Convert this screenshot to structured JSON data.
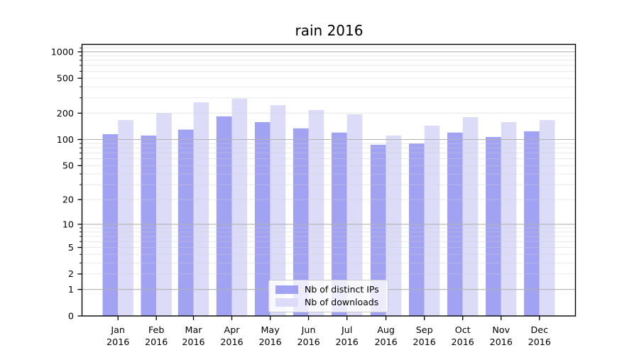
{
  "title": "rain 2016",
  "legend": {
    "items": [
      {
        "label": "Nb of distinct IPs",
        "series": "distinct_ips"
      },
      {
        "label": "Nb of downloads",
        "series": "downloads"
      }
    ]
  },
  "colors": {
    "distinct_ips": "#a2a2f2",
    "downloads": "#dcdcf9",
    "grid_major": "#b2b2b2",
    "grid_minor": "#cdcdcd",
    "spine": "#000000",
    "text": "#000000",
    "legend_border": "#cccccc"
  },
  "axes": {
    "y_tick_labels": [
      "0",
      "1",
      "2",
      "5",
      "10",
      "20",
      "50",
      "100",
      "200",
      "500",
      "1000"
    ],
    "x_months": [
      "Jan",
      "Feb",
      "Mar",
      "Apr",
      "May",
      "Jun",
      "Jul",
      "Aug",
      "Sep",
      "Oct",
      "Nov",
      "Dec"
    ],
    "x_year": "2016"
  },
  "chart_data": {
    "type": "bar",
    "title": "rain 2016",
    "categories": [
      "Jan 2016",
      "Feb 2016",
      "Mar 2016",
      "Apr 2016",
      "May 2016",
      "Jun 2016",
      "Jul 2016",
      "Aug 2016",
      "Sep 2016",
      "Oct 2016",
      "Nov 2016",
      "Dec 2016"
    ],
    "series": [
      {
        "name": "Nb of distinct IPs",
        "values": [
          115,
          111,
          130,
          184,
          158,
          134,
          120,
          87,
          90,
          120,
          107,
          124
        ]
      },
      {
        "name": "Nb of downloads",
        "values": [
          167,
          200,
          266,
          293,
          247,
          217,
          194,
          111,
          144,
          180,
          158,
          167
        ]
      }
    ],
    "yscale": "symlog",
    "yticks": [
      0,
      1,
      2,
      5,
      10,
      20,
      50,
      100,
      200,
      500,
      1000
    ],
    "ylim": [
      0,
      1200
    ],
    "grid": true,
    "legend_position": "lower center"
  }
}
